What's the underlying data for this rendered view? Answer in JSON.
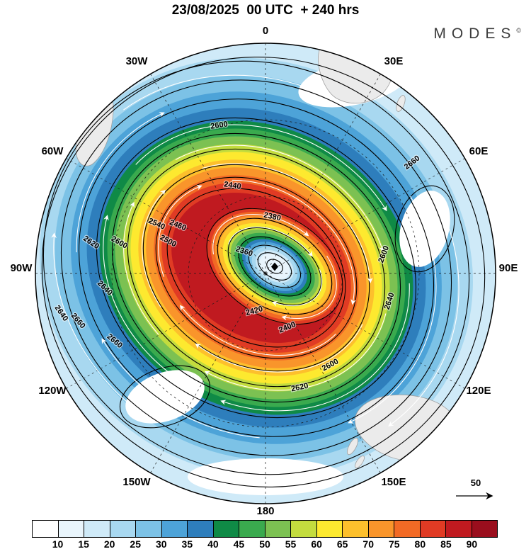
{
  "header": {
    "title": "23/08/2025  00 UTC  + 240 hrs",
    "brand": "MODES",
    "brand_mark": "©"
  },
  "chart_data": {
    "type": "heatmap",
    "subtype": "polar-stereographic-contour-map",
    "title": "23/08/2025 00 UTC + 240 hrs",
    "longitude_labels": [
      "0",
      "30E",
      "60E",
      "90E",
      "120E",
      "150E",
      "180",
      "150W",
      "120W",
      "90W",
      "60W",
      "30W"
    ],
    "contour_labels": [
      "2600",
      "2660",
      "2640",
      "2600",
      "2620",
      "2400",
      "2420",
      "2380",
      "2360",
      "2440",
      "2460",
      "2500",
      "2540",
      "2600",
      "2620",
      "2640",
      "2640",
      "2660",
      "2660",
      "2600"
    ],
    "reference_vector_label": "50",
    "colorbar": {
      "ticks": [
        "10",
        "15",
        "20",
        "25",
        "30",
        "35",
        "40",
        "45",
        "50",
        "55",
        "60",
        "65",
        "70",
        "75",
        "80",
        "85",
        "90"
      ],
      "colors": [
        "#ffffff",
        "#e9f5fc",
        "#cfeaf8",
        "#a8d8f0",
        "#7cc2e6",
        "#4da3d8",
        "#2e7ebc",
        "#0f8a46",
        "#3aaa4e",
        "#7cc152",
        "#c3dc3e",
        "#fde92f",
        "#fdc02c",
        "#f9952b",
        "#f26a25",
        "#e03b24",
        "#c01a20",
        "#9a0e1d"
      ]
    }
  }
}
